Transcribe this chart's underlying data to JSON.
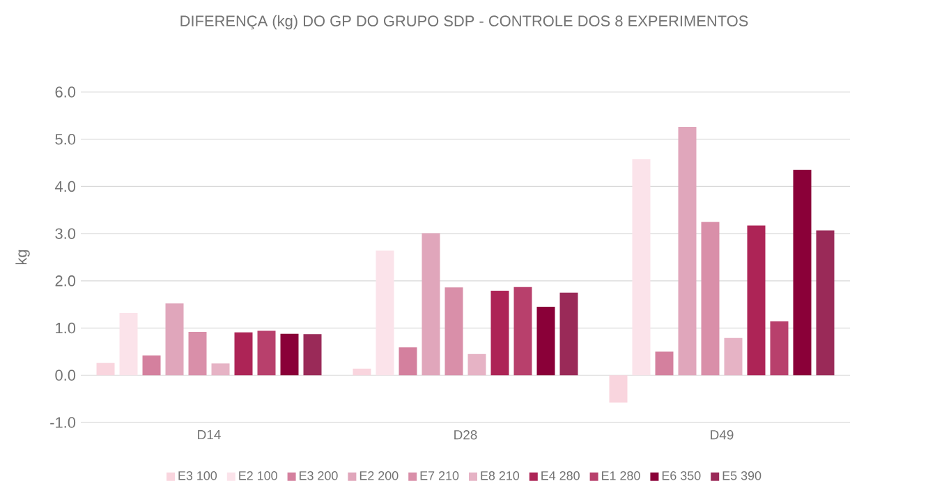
{
  "chart_data": {
    "type": "bar",
    "title": "DIFERENÇA (kg) DO GP DO GRUPO SDP - CONTROLE DOS 8 EXPERIMENTOS",
    "ylabel": "kg",
    "categories": [
      "D14",
      "D28",
      "D49"
    ],
    "series": [
      {
        "name": "E3 100",
        "color": "#f9d5de",
        "values": [
          0.26,
          0.14,
          -0.58
        ]
      },
      {
        "name": "E2 100",
        "color": "#fbe3ea",
        "values": [
          1.32,
          2.64,
          4.58
        ]
      },
      {
        "name": "E3 200",
        "color": "#d4809e",
        "values": [
          0.42,
          0.59,
          0.5
        ]
      },
      {
        "name": "E2 200",
        "color": "#e0a6bb",
        "values": [
          1.52,
          3.01,
          5.26
        ]
      },
      {
        "name": "E7 210",
        "color": "#d98fa9",
        "values": [
          0.92,
          1.86,
          3.25
        ]
      },
      {
        "name": "E8 210",
        "color": "#e6b3c5",
        "values": [
          0.25,
          0.45,
          0.79
        ]
      },
      {
        "name": "E4 280",
        "color": "#ad2456",
        "values": [
          0.91,
          1.79,
          3.17
        ]
      },
      {
        "name": "E1 280",
        "color": "#b8406c",
        "values": [
          0.94,
          1.87,
          1.14
        ]
      },
      {
        "name": "E6 350",
        "color": "#8a0038",
        "values": [
          0.88,
          1.45,
          4.35
        ]
      },
      {
        "name": "E5 390",
        "color": "#9a2a58",
        "values": [
          0.87,
          1.75,
          3.07
        ]
      }
    ],
    "ylim": [
      -1,
      6
    ],
    "yticks": [
      {
        "value": -1,
        "label": "-1.0"
      },
      {
        "value": 0,
        "label": "0.0"
      },
      {
        "value": 1,
        "label": "1.0"
      },
      {
        "value": 2,
        "label": "2.0"
      },
      {
        "value": 3,
        "label": "3.0"
      },
      {
        "value": 4,
        "label": "4.0"
      },
      {
        "value": 5,
        "label": "5.0"
      },
      {
        "value": 6,
        "label": "6.0"
      }
    ],
    "grid": "y",
    "legend": "bottom"
  }
}
